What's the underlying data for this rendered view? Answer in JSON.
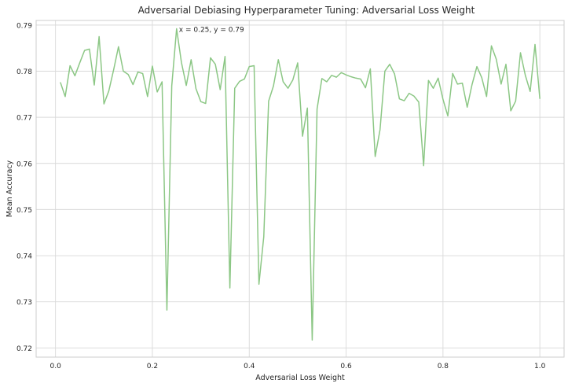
{
  "chart_data": {
    "type": "line",
    "title": "Adversarial Debiasing Hyperparameter Tuning: Adversarial Loss Weight",
    "xlabel": "Adversarial Loss Weight",
    "ylabel": "Mean Accuracy",
    "xlim": [
      -0.04,
      1.05
    ],
    "ylim": [
      0.718,
      0.791
    ],
    "xticks": [
      0.0,
      0.2,
      0.4,
      0.6,
      0.8,
      1.0
    ],
    "xtick_labels": [
      "0.0",
      "0.2",
      "0.4",
      "0.6",
      "0.8",
      "1.0"
    ],
    "yticks": [
      0.72,
      0.73,
      0.74,
      0.75,
      0.76,
      0.77,
      0.78,
      0.79
    ],
    "ytick_labels": [
      "0.72",
      "0.73",
      "0.74",
      "0.75",
      "0.76",
      "0.77",
      "0.78",
      "0.79"
    ],
    "grid": true,
    "line_color": "#8cc785",
    "annotation": {
      "text": "x = 0.25, y = 0.79",
      "x": 0.25,
      "y": 0.789
    },
    "series": [
      {
        "x": [
          0.01,
          0.02,
          0.03,
          0.04,
          0.05,
          0.06,
          0.07,
          0.08,
          0.09,
          0.1,
          0.11,
          0.12,
          0.13,
          0.14,
          0.15,
          0.16,
          0.17,
          0.18,
          0.19,
          0.2,
          0.21,
          0.22,
          0.23,
          0.24,
          0.25,
          0.26,
          0.27,
          0.28,
          0.29,
          0.3,
          0.31,
          0.32,
          0.33,
          0.34,
          0.35,
          0.36,
          0.37,
          0.38,
          0.39,
          0.4,
          0.41,
          0.42,
          0.43,
          0.44,
          0.45,
          0.46,
          0.47,
          0.48,
          0.49,
          0.5,
          0.51,
          0.52,
          0.53,
          0.54,
          0.55,
          0.56,
          0.57,
          0.58,
          0.59,
          0.6,
          0.61,
          0.62,
          0.63,
          0.64,
          0.65,
          0.66,
          0.67,
          0.68,
          0.69,
          0.7,
          0.71,
          0.72,
          0.73,
          0.74,
          0.75,
          0.76,
          0.77,
          0.78,
          0.79,
          0.8,
          0.81,
          0.82,
          0.83,
          0.84,
          0.85,
          0.86,
          0.87,
          0.88,
          0.89,
          0.9,
          0.91,
          0.92,
          0.93,
          0.94,
          0.95,
          0.96,
          0.97,
          0.98,
          0.99,
          1.0
        ],
        "values": [
          0.7776,
          0.7745,
          0.7812,
          0.779,
          0.7818,
          0.7845,
          0.7848,
          0.777,
          0.7875,
          0.7729,
          0.7757,
          0.7803,
          0.7853,
          0.78,
          0.7793,
          0.7771,
          0.7798,
          0.7795,
          0.7745,
          0.7811,
          0.7755,
          0.7777,
          0.7282,
          0.7768,
          0.7892,
          0.7819,
          0.7769,
          0.7825,
          0.7762,
          0.7734,
          0.773,
          0.7829,
          0.7815,
          0.776,
          0.7832,
          0.733,
          0.7763,
          0.7778,
          0.7783,
          0.781,
          0.7812,
          0.7338,
          0.7441,
          0.7735,
          0.7768,
          0.7825,
          0.7777,
          0.7763,
          0.7781,
          0.7818,
          0.7659,
          0.772,
          0.7217,
          0.7718,
          0.7784,
          0.7777,
          0.7791,
          0.7787,
          0.7797,
          0.7792,
          0.7788,
          0.7785,
          0.7783,
          0.7764,
          0.7805,
          0.7615,
          0.7673,
          0.78,
          0.7815,
          0.7794,
          0.774,
          0.7736,
          0.7752,
          0.7746,
          0.7733,
          0.7595,
          0.778,
          0.7763,
          0.7785,
          0.7739,
          0.7703,
          0.7795,
          0.7772,
          0.7774,
          0.7722,
          0.7771,
          0.781,
          0.7786,
          0.7745,
          0.7855,
          0.7826,
          0.7772,
          0.7815,
          0.7714,
          0.7735,
          0.784,
          0.7791,
          0.7756,
          0.7858,
          0.774
        ]
      }
    ]
  }
}
